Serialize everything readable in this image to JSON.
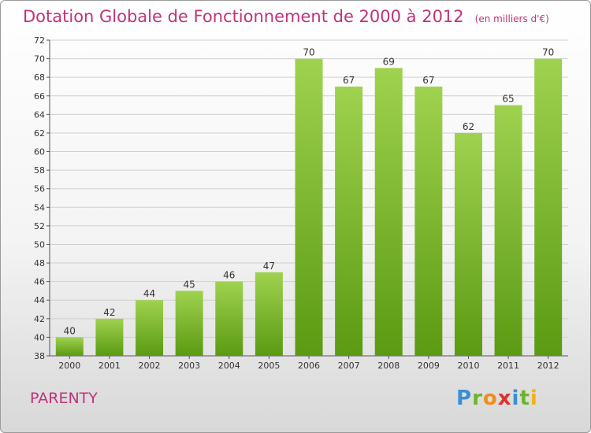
{
  "title": "Dotation Globale de Fonctionnement de 2000 à 2012",
  "subtitle": "(en milliers d'€)",
  "commune": "PARENTY",
  "logo": {
    "letters": [
      "P",
      "r",
      "o",
      "x",
      "i",
      "t",
      "i"
    ],
    "colors": [
      "#3a8fd6",
      "#6bb52c",
      "#f28c1a",
      "#e0302a",
      "#3a8fd6",
      "#6bb52c",
      "#f2b01a"
    ]
  },
  "colors": {
    "title": "#c0337a",
    "bar_top": "#9fd24f",
    "bar_bottom": "#5b9a12",
    "grid": "#cfcfcf"
  },
  "chart_data": {
    "type": "bar",
    "categories": [
      "2000",
      "2001",
      "2002",
      "2003",
      "2004",
      "2005",
      "2006",
      "2007",
      "2008",
      "2009",
      "2010",
      "2011",
      "2012"
    ],
    "values": [
      40,
      42,
      44,
      45,
      46,
      47,
      70,
      67,
      69,
      67,
      62,
      65,
      70
    ],
    "ylim": [
      38,
      72
    ],
    "yticks": [
      38,
      40,
      42,
      44,
      46,
      48,
      50,
      52,
      54,
      56,
      58,
      60,
      62,
      64,
      66,
      68,
      70,
      72
    ],
    "grid": true
  }
}
